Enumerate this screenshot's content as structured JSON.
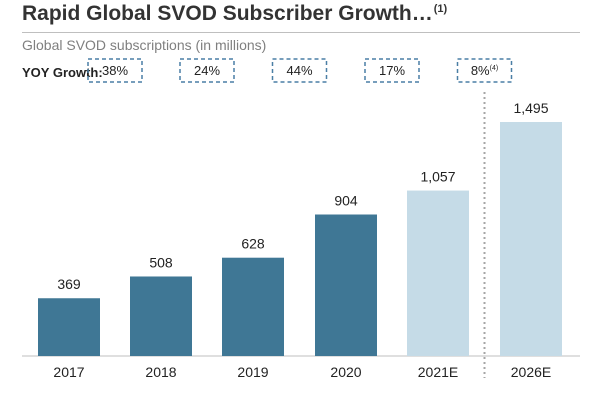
{
  "header": {
    "title": "Rapid Global SVOD Subscriber Growth…",
    "title_footnote": "(1)",
    "subtitle": "Global SVOD subscriptions (in millions)",
    "yoy_label": "YOY Growth:"
  },
  "colors": {
    "actual_bar": "#3f7795",
    "estimate_bar": "#c5dbe7",
    "yoy_box_border": "#4a7fa5",
    "divider": "#a6a6a6"
  },
  "chart_data": {
    "type": "bar",
    "title": "Rapid Global SVOD Subscriber Growth…",
    "subtitle": "Global SVOD subscriptions (in millions)",
    "xlabel": "",
    "ylabel": "",
    "categories": [
      "2017",
      "2018",
      "2019",
      "2020",
      "2021E",
      "2026E"
    ],
    "values": [
      369,
      508,
      628,
      904,
      1057,
      1495
    ],
    "data_labels": [
      "369",
      "508",
      "628",
      "904",
      "1,057",
      "1,495"
    ],
    "estimate": [
      false,
      false,
      false,
      false,
      true,
      true
    ],
    "yoy_growth": [
      "38%",
      "24%",
      "44%",
      "17%",
      "8%"
    ],
    "yoy_growth_footnotes": [
      "",
      "",
      "",
      "",
      "(4)"
    ],
    "ylim": [
      0,
      1500
    ],
    "grid": false,
    "legend": "none"
  }
}
